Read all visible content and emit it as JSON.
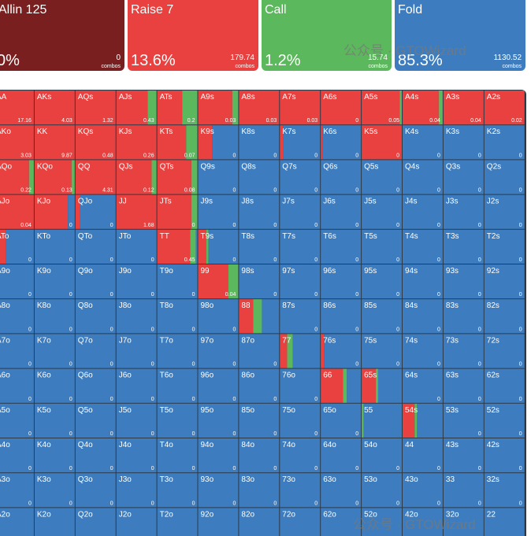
{
  "actions": [
    {
      "name": "Allin 125",
      "pct": "0%",
      "combos": "0",
      "color": "#7a1f1f"
    },
    {
      "name": "Raise 7",
      "pct": "13.6%",
      "combos": "179.74",
      "color": "#e8413f"
    },
    {
      "name": "Call",
      "pct": "1.2%",
      "combos": "15.74",
      "color": "#5cb85c"
    },
    {
      "name": "Fold",
      "pct": "85.3%",
      "combos": "1130.52",
      "color": "#3d7dbf"
    }
  ],
  "combos_label": "combos",
  "watermark": "公众号 · GTOWizard",
  "colors": {
    "raise": "#e8413f",
    "call": "#5cb85c",
    "fold": "#3d7dbf"
  },
  "grid": [
    [
      [
        "AA",
        17.16,
        100,
        0,
        0
      ],
      [
        "AKs",
        4.03,
        100,
        0,
        0
      ],
      [
        "AQs",
        1.32,
        100,
        0,
        0
      ],
      [
        "AJs",
        0.43,
        78,
        22,
        0
      ],
      [
        "ATs",
        0.2,
        62,
        38,
        0
      ],
      [
        "A9s",
        0.03,
        85,
        15,
        0
      ],
      [
        "A8s",
        0.03,
        100,
        0,
        0
      ],
      [
        "A7s",
        0.03,
        100,
        0,
        0
      ],
      [
        "A6s",
        0,
        100,
        0,
        0
      ],
      [
        "A5s",
        0.05,
        95,
        5,
        0
      ],
      [
        "A4s",
        0.04,
        90,
        10,
        0
      ],
      [
        "A3s",
        0.04,
        100,
        0,
        0
      ],
      [
        "A2s",
        0.02,
        100,
        0,
        0
      ]
    ],
    [
      [
        "AKo",
        3.03,
        100,
        0,
        0
      ],
      [
        "KK",
        9.87,
        100,
        0,
        0
      ],
      [
        "KQs",
        0.48,
        100,
        0,
        0
      ],
      [
        "KJs",
        0.26,
        100,
        0,
        0
      ],
      [
        "KTs",
        0.07,
        72,
        28,
        0
      ],
      [
        "K9s",
        0,
        35,
        0,
        65
      ],
      [
        "K8s",
        0,
        0,
        0,
        100
      ],
      [
        "K7s",
        0,
        8,
        0,
        92
      ],
      [
        "K6s",
        0,
        4,
        0,
        96
      ],
      [
        "K5s",
        0,
        100,
        0,
        0
      ],
      [
        "K4s",
        0,
        0,
        0,
        100
      ],
      [
        "K3s",
        0,
        0,
        0,
        100
      ],
      [
        "K2s",
        0,
        0,
        0,
        100
      ]
    ],
    [
      [
        "AQo",
        0.22,
        88,
        12,
        0
      ],
      [
        "KQo",
        0.13,
        92,
        8,
        0
      ],
      [
        "QQ",
        4.31,
        100,
        0,
        0
      ],
      [
        "QJs",
        0.12,
        88,
        12,
        0
      ],
      [
        "QTs",
        0.08,
        85,
        15,
        0
      ],
      [
        "Q9s",
        0,
        0,
        0,
        100
      ],
      [
        "Q8s",
        0,
        0,
        0,
        100
      ],
      [
        "Q7s",
        0,
        0,
        0,
        100
      ],
      [
        "Q6s",
        0,
        0,
        0,
        100
      ],
      [
        "Q5s",
        0,
        0,
        0,
        100
      ],
      [
        "Q4s",
        0,
        0,
        0,
        100
      ],
      [
        "Q3s",
        0,
        0,
        0,
        100
      ],
      [
        "Q2s",
        0,
        0,
        0,
        100
      ]
    ],
    [
      [
        "AJo",
        0.04,
        100,
        0,
        0
      ],
      [
        "KJo",
        0,
        83,
        0,
        17
      ],
      [
        "QJo",
        0,
        12,
        0,
        88
      ],
      [
        "JJ",
        1.68,
        100,
        0,
        0
      ],
      [
        "JTs",
        0,
        85,
        15,
        0
      ],
      [
        "J9s",
        0,
        0,
        0,
        100
      ],
      [
        "J8s",
        0,
        0,
        0,
        100
      ],
      [
        "J7s",
        0,
        0,
        0,
        100
      ],
      [
        "J6s",
        0,
        0,
        0,
        100
      ],
      [
        "J5s",
        0,
        0,
        0,
        100
      ],
      [
        "J4s",
        0,
        0,
        0,
        100
      ],
      [
        "J3s",
        0,
        0,
        0,
        100
      ],
      [
        "J2s",
        0,
        0,
        0,
        100
      ]
    ],
    [
      [
        "ATo",
        0,
        30,
        0,
        70
      ],
      [
        "KTo",
        0,
        0,
        0,
        100
      ],
      [
        "QTo",
        0,
        0,
        0,
        100
      ],
      [
        "JTo",
        0,
        0,
        0,
        100
      ],
      [
        "TT",
        0.45,
        82,
        14,
        4
      ],
      [
        "T9s",
        0,
        20,
        6,
        74
      ],
      [
        "T8s",
        0,
        0,
        0,
        100
      ],
      [
        "T7s",
        0,
        0,
        0,
        100
      ],
      [
        "T6s",
        0,
        0,
        0,
        100
      ],
      [
        "T5s",
        0,
        0,
        0,
        100
      ],
      [
        "T4s",
        0,
        0,
        0,
        100
      ],
      [
        "T3s",
        0,
        0,
        0,
        100
      ],
      [
        "T2s",
        0,
        0,
        0,
        100
      ]
    ],
    [
      [
        "A9o",
        0,
        0,
        0,
        100
      ],
      [
        "K9o",
        0,
        0,
        0,
        100
      ],
      [
        "Q9o",
        0,
        0,
        0,
        100
      ],
      [
        "J9o",
        0,
        0,
        0,
        100
      ],
      [
        "T9o",
        0,
        0,
        0,
        100
      ],
      [
        "99",
        0.04,
        75,
        25,
        0
      ],
      [
        "98s",
        0,
        0,
        0,
        100
      ],
      [
        "97s",
        0,
        0,
        0,
        100
      ],
      [
        "96s",
        0,
        0,
        0,
        100
      ],
      [
        "95s",
        0,
        0,
        0,
        100
      ],
      [
        "94s",
        0,
        0,
        0,
        100
      ],
      [
        "93s",
        0,
        0,
        0,
        100
      ],
      [
        "92s",
        0,
        0,
        0,
        100
      ]
    ],
    [
      [
        "A8o",
        0,
        0,
        0,
        100
      ],
      [
        "K8o",
        0,
        0,
        0,
        100
      ],
      [
        "Q8o",
        0,
        0,
        0,
        100
      ],
      [
        "J8o",
        0,
        0,
        0,
        100
      ],
      [
        "T8o",
        0,
        0,
        0,
        100
      ],
      [
        "98o",
        0,
        0,
        0,
        100
      ],
      [
        "88",
        null,
        35,
        22,
        43
      ],
      [
        "87s",
        0,
        0,
        0,
        100
      ],
      [
        "86s",
        0,
        0,
        0,
        100
      ],
      [
        "85s",
        0,
        0,
        0,
        100
      ],
      [
        "84s",
        0,
        0,
        0,
        100
      ],
      [
        "83s",
        0,
        0,
        0,
        100
      ],
      [
        "82s",
        0,
        0,
        0,
        100
      ]
    ],
    [
      [
        "A7o",
        0,
        0,
        0,
        100
      ],
      [
        "K7o",
        0,
        0,
        0,
        100
      ],
      [
        "Q7o",
        0,
        0,
        0,
        100
      ],
      [
        "J7o",
        0,
        0,
        0,
        100
      ],
      [
        "T7o",
        0,
        0,
        0,
        100
      ],
      [
        "97o",
        0,
        0,
        0,
        100
      ],
      [
        "87o",
        0,
        0,
        0,
        100
      ],
      [
        "77",
        null,
        18,
        14,
        68
      ],
      [
        "76s",
        0,
        8,
        0,
        92
      ],
      [
        "75s",
        0,
        0,
        0,
        100
      ],
      [
        "74s",
        0,
        0,
        0,
        100
      ],
      [
        "73s",
        0,
        0,
        0,
        100
      ],
      [
        "72s",
        0,
        0,
        0,
        100
      ]
    ],
    [
      [
        "A6o",
        0,
        0,
        0,
        100
      ],
      [
        "K6o",
        0,
        0,
        0,
        100
      ],
      [
        "Q6o",
        0,
        0,
        0,
        100
      ],
      [
        "J6o",
        0,
        0,
        0,
        100
      ],
      [
        "T6o",
        0,
        0,
        0,
        100
      ],
      [
        "96o",
        0,
        0,
        0,
        100
      ],
      [
        "86o",
        0,
        0,
        0,
        100
      ],
      [
        "76o",
        0,
        0,
        0,
        100
      ],
      [
        "66",
        null,
        55,
        10,
        35
      ],
      [
        "65s",
        null,
        35,
        6,
        59
      ],
      [
        "64s",
        0,
        0,
        0,
        100
      ],
      [
        "63s",
        0,
        0,
        0,
        100
      ],
      [
        "62s",
        0,
        0,
        0,
        100
      ]
    ],
    [
      [
        "A5o",
        0,
        0,
        0,
        100
      ],
      [
        "K5o",
        0,
        0,
        0,
        100
      ],
      [
        "Q5o",
        0,
        0,
        0,
        100
      ],
      [
        "J5o",
        0,
        0,
        0,
        100
      ],
      [
        "T5o",
        0,
        0,
        0,
        100
      ],
      [
        "95o",
        0,
        0,
        0,
        100
      ],
      [
        "85o",
        0,
        0,
        0,
        100
      ],
      [
        "75o",
        0,
        0,
        0,
        100
      ],
      [
        "65o",
        0,
        0,
        0,
        100
      ],
      [
        "55",
        null,
        0,
        5,
        95
      ],
      [
        "54s",
        null,
        30,
        6,
        64
      ],
      [
        "53s",
        0,
        0,
        0,
        100
      ],
      [
        "52s",
        0,
        0,
        0,
        100
      ]
    ],
    [
      [
        "A4o",
        0,
        0,
        0,
        100
      ],
      [
        "K4o",
        0,
        0,
        0,
        100
      ],
      [
        "Q4o",
        0,
        0,
        0,
        100
      ],
      [
        "J4o",
        0,
        0,
        0,
        100
      ],
      [
        "T4o",
        0,
        0,
        0,
        100
      ],
      [
        "94o",
        0,
        0,
        0,
        100
      ],
      [
        "84o",
        0,
        0,
        0,
        100
      ],
      [
        "74o",
        0,
        0,
        0,
        100
      ],
      [
        "64o",
        0,
        0,
        0,
        100
      ],
      [
        "54o",
        0,
        0,
        0,
        100
      ],
      [
        "44",
        0,
        0,
        0,
        100
      ],
      [
        "43s",
        0,
        0,
        0,
        100
      ],
      [
        "42s",
        0,
        0,
        0,
        100
      ]
    ],
    [
      [
        "A3o",
        0,
        0,
        0,
        100
      ],
      [
        "K3o",
        0,
        0,
        0,
        100
      ],
      [
        "Q3o",
        0,
        0,
        0,
        100
      ],
      [
        "J3o",
        0,
        0,
        0,
        100
      ],
      [
        "T3o",
        0,
        0,
        0,
        100
      ],
      [
        "93o",
        0,
        0,
        0,
        100
      ],
      [
        "83o",
        0,
        0,
        0,
        100
      ],
      [
        "73o",
        0,
        0,
        0,
        100
      ],
      [
        "63o",
        0,
        0,
        0,
        100
      ],
      [
        "53o",
        0,
        0,
        0,
        100
      ],
      [
        "43o",
        0,
        0,
        0,
        100
      ],
      [
        "33",
        0,
        0,
        0,
        100
      ],
      [
        "32s",
        0,
        0,
        0,
        100
      ]
    ],
    [
      [
        "A2o",
        null,
        0,
        0,
        100
      ],
      [
        "K2o",
        null,
        0,
        0,
        100
      ],
      [
        "Q2o",
        null,
        0,
        0,
        100
      ],
      [
        "J2o",
        null,
        0,
        0,
        100
      ],
      [
        "T2o",
        null,
        0,
        0,
        100
      ],
      [
        "92o",
        null,
        0,
        0,
        100
      ],
      [
        "82o",
        null,
        0,
        0,
        100
      ],
      [
        "72o",
        null,
        0,
        0,
        100
      ],
      [
        "62o",
        null,
        0,
        0,
        100
      ],
      [
        "52o",
        null,
        0,
        0,
        100
      ],
      [
        "42o",
        null,
        0,
        0,
        100
      ],
      [
        "32o",
        null,
        0,
        0,
        100
      ],
      [
        "22",
        null,
        0,
        0,
        100
      ]
    ]
  ]
}
